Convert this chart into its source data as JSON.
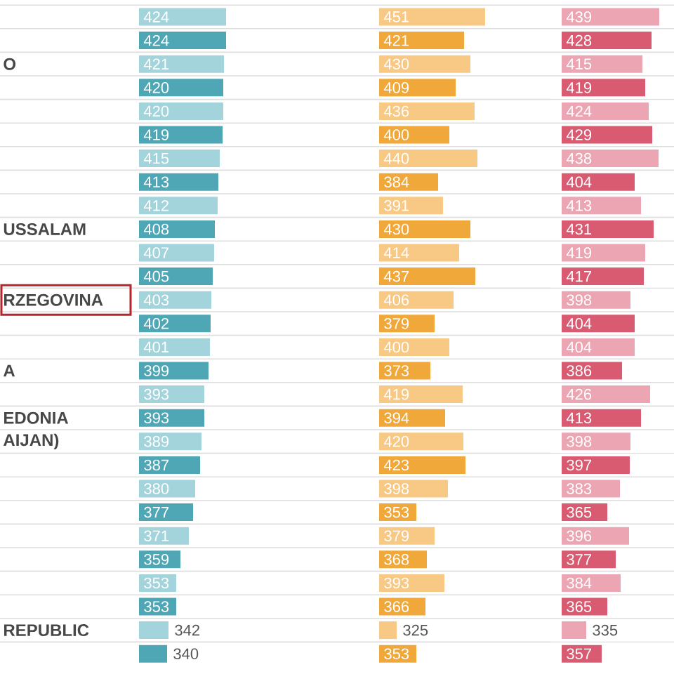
{
  "chart_data": [
    {
      "type": "bar",
      "orientation": "horizontal",
      "categories": [
        null,
        null,
        "O",
        null,
        null,
        null,
        null,
        null,
        null,
        "USSALAM",
        null,
        null,
        "RZEGOVINA",
        null,
        null,
        "A",
        null,
        "EDONIA",
        "AIJAN)",
        null,
        null,
        null,
        null,
        null,
        null,
        null,
        "REPUBLIC",
        null
      ],
      "values": [
        424,
        424,
        421,
        420,
        420,
        419,
        415,
        413,
        412,
        408,
        407,
        405,
        403,
        402,
        401,
        399,
        393,
        393,
        389,
        387,
        380,
        377,
        371,
        359,
        353,
        353,
        342,
        340
      ],
      "colors": [
        "#a4d4db",
        "#4fa6b5",
        "#a4d4db",
        "#4fa6b5",
        "#a4d4db",
        "#4fa6b5",
        "#a4d4db",
        "#4fa6b5",
        "#a4d4db",
        "#4fa6b5",
        "#a4d4db",
        "#4fa6b5",
        "#a4d4db",
        "#4fa6b5",
        "#a4d4db",
        "#4fa6b5",
        "#a4d4db",
        "#4fa6b5",
        "#a4d4db",
        "#4fa6b5",
        "#a4d4db",
        "#4fa6b5",
        "#a4d4db",
        "#4fa6b5",
        "#a4d4db",
        "#4fa6b5",
        "#a4d4db",
        "#4fa6b5"
      ],
      "xlim": [
        300,
        424
      ],
      "data_labels": true,
      "grid": "y",
      "tick_labels": "y"
    },
    {
      "type": "bar",
      "orientation": "horizontal",
      "categories": [
        null,
        null,
        null,
        null,
        null,
        null,
        null,
        null,
        null,
        null,
        null,
        null,
        null,
        null,
        null,
        null,
        null,
        null,
        null,
        null,
        null,
        null,
        null,
        null,
        null,
        null,
        null,
        null
      ],
      "values": [
        451,
        421,
        430,
        409,
        436,
        400,
        440,
        384,
        391,
        430,
        414,
        437,
        406,
        379,
        400,
        373,
        419,
        394,
        420,
        423,
        398,
        353,
        379,
        368,
        393,
        366,
        325,
        353
      ],
      "colors": [
        "#f8c885",
        "#f1a83a",
        "#f8c885",
        "#f1a83a",
        "#f8c885",
        "#f1a83a",
        "#f8c885",
        "#f1a83a",
        "#f8c885",
        "#f1a83a",
        "#f8c885",
        "#f1a83a",
        "#f8c885",
        "#f1a83a",
        "#f8c885",
        "#f1a83a",
        "#f8c885",
        "#f1a83a",
        "#f8c885",
        "#f1a83a",
        "#f8c885",
        "#f1a83a",
        "#f8c885",
        "#f1a83a",
        "#f8c885",
        "#f1a83a",
        "#f8c885",
        "#f1a83a"
      ],
      "xlim": [
        300,
        451
      ],
      "data_labels": true,
      "grid": "y"
    },
    {
      "type": "bar",
      "orientation": "horizontal",
      "categories": [
        null,
        null,
        null,
        null,
        null,
        null,
        null,
        null,
        null,
        null,
        null,
        null,
        null,
        null,
        null,
        null,
        null,
        null,
        null,
        null,
        null,
        null,
        null,
        null,
        null,
        null,
        null,
        null
      ],
      "values": [
        439,
        428,
        415,
        419,
        424,
        429,
        438,
        404,
        413,
        431,
        419,
        417,
        398,
        404,
        404,
        386,
        426,
        413,
        398,
        397,
        383,
        365,
        396,
        377,
        384,
        365,
        335,
        357
      ],
      "colors": [
        "#eca6b3",
        "#d95b72",
        "#eca6b3",
        "#d95b72",
        "#eca6b3",
        "#d95b72",
        "#eca6b3",
        "#d95b72",
        "#eca6b3",
        "#d95b72",
        "#eca6b3",
        "#d95b72",
        "#eca6b3",
        "#d95b72",
        "#eca6b3",
        "#d95b72",
        "#eca6b3",
        "#d95b72",
        "#eca6b3",
        "#d95b72",
        "#eca6b3",
        "#d95b72",
        "#eca6b3",
        "#d95b72",
        "#eca6b3",
        "#d95b72",
        "#eca6b3",
        "#d95b72"
      ],
      "xlim": [
        300,
        439
      ],
      "data_labels": true,
      "grid": "y"
    }
  ]
}
